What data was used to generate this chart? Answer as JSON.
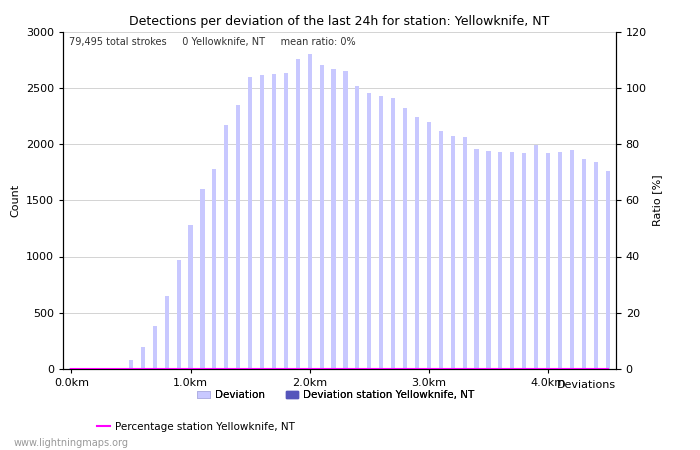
{
  "title": "Detections per deviation of the last 24h for station: Yellowknife, NT",
  "subtitle": "79,495 total strokes     0 Yellowknife, NT     mean ratio: 0%",
  "xlabel": "Deviations",
  "ylabel_left": "Count",
  "ylabel_right": "Ratio [%]",
  "ylim_left": [
    0,
    3000
  ],
  "ylim_right": [
    0,
    120
  ],
  "yticks_left": [
    0,
    500,
    1000,
    1500,
    2000,
    2500,
    3000
  ],
  "yticks_right": [
    0,
    20,
    40,
    60,
    80,
    100,
    120
  ],
  "xtick_labels": [
    "0.0km",
    "1.0km",
    "2.0km",
    "3.0km",
    "4.0km"
  ],
  "xtick_positions": [
    0,
    10,
    20,
    30,
    40
  ],
  "bar_color_light": "#c8c8ff",
  "bar_color_dark": "#5555bb",
  "line_color": "#ff00ff",
  "watermark": "www.lightningmaps.org",
  "bar_values": [
    5,
    5,
    5,
    5,
    5,
    80,
    200,
    380,
    650,
    970,
    1280,
    1600,
    1780,
    2170,
    2350,
    2600,
    2610,
    2620,
    2630,
    2760,
    2800,
    2700,
    2670,
    2650,
    2520,
    2450,
    2430,
    2410,
    2320,
    2240,
    2200,
    2120,
    2070,
    2060,
    1960,
    1940,
    1930,
    1930,
    1920,
    1990,
    1920,
    1930,
    1950,
    1870,
    1840,
    1760
  ],
  "station_bar_values": [
    0,
    0,
    0,
    0,
    0,
    0,
    0,
    0,
    0,
    0,
    0,
    0,
    0,
    0,
    0,
    0,
    0,
    0,
    0,
    0,
    0,
    0,
    0,
    0,
    0,
    0,
    0,
    0,
    0,
    0,
    0,
    0,
    0,
    0,
    0,
    0,
    0,
    0,
    0,
    0,
    0,
    0,
    0,
    0,
    0,
    0
  ],
  "percentage_values": [
    0,
    0,
    0,
    0,
    0,
    0,
    0,
    0,
    0,
    0,
    0,
    0,
    0,
    0,
    0,
    0,
    0,
    0,
    0,
    0,
    0,
    0,
    0,
    0,
    0,
    0,
    0,
    0,
    0,
    0,
    0,
    0,
    0,
    0,
    0,
    0,
    0,
    0,
    0,
    0,
    0,
    0,
    0,
    0,
    0,
    0
  ],
  "n_bars": 46,
  "bar_width": 0.35,
  "figsize": [
    7.0,
    4.5
  ],
  "dpi": 100,
  "title_fontsize": 9,
  "label_fontsize": 8,
  "tick_fontsize": 8,
  "subtitle_fontsize": 7,
  "legend_fontsize": 7.5,
  "watermark_fontsize": 7
}
